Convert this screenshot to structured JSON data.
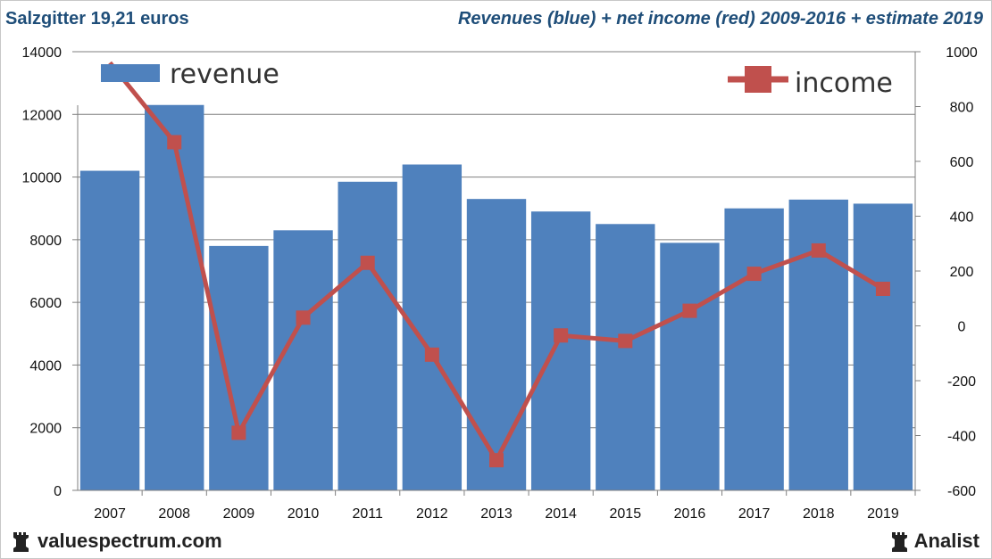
{
  "header": {
    "left": "Salzgitter 19,21 euros",
    "right": "Revenues (blue) + net income (red) 2009-2016 + estimate 2019"
  },
  "footer": {
    "left": "valuespectrum.com",
    "right": "Analist"
  },
  "colors": {
    "bar": "#4f81bd",
    "line": "#c0504d",
    "grid": "#7f7f7f"
  },
  "chart_data": {
    "type": "bar",
    "categories": [
      "2007",
      "2008",
      "2009",
      "2010",
      "2011",
      "2012",
      "2013",
      "2014",
      "2015",
      "2016",
      "2017",
      "2018",
      "2019"
    ],
    "series": [
      {
        "name": "revenue",
        "axis": "left",
        "kind": "bar",
        "values": [
          10200,
          12300,
          7800,
          8300,
          9850,
          10400,
          9300,
          8900,
          8500,
          7900,
          9000,
          9280,
          9150
        ]
      },
      {
        "name": "income",
        "axis": "right",
        "kind": "line",
        "values": [
          960,
          670,
          -390,
          30,
          230,
          -105,
          -490,
          -35,
          -55,
          55,
          190,
          275,
          135
        ]
      }
    ],
    "yleft": {
      "min": 0,
      "max": 14000,
      "ticks": [
        0,
        2000,
        4000,
        6000,
        8000,
        10000,
        12000,
        14000
      ]
    },
    "yright": {
      "min": -600,
      "max": 1000,
      "ticks": [
        -600,
        -400,
        -200,
        0,
        200,
        400,
        600,
        800,
        1000
      ]
    },
    "legend": {
      "revenue": "revenue",
      "income": "income"
    }
  }
}
